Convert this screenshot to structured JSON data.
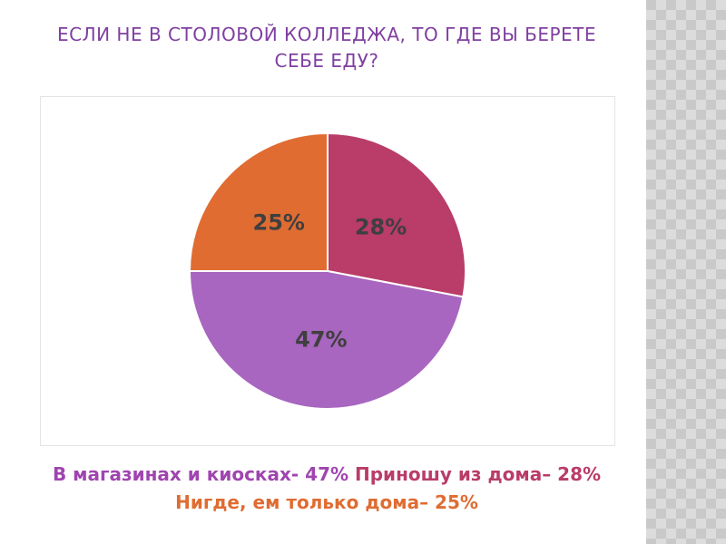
{
  "slide": {
    "title": "Если не в столовой колледжа, то где вы берете себе еду?"
  },
  "chart_data": {
    "type": "pie",
    "title": "",
    "slices": [
      {
        "category": "Приношу из дома",
        "value": 28,
        "label": "28%",
        "color": "#b93c69"
      },
      {
        "category": "В магазинах и киосках",
        "value": 47,
        "label": "47%",
        "color": "#a866c0"
      },
      {
        "category": "Нигде, ем только дома",
        "value": 25,
        "label": "25%",
        "color": "#e06c32"
      }
    ],
    "label_color": "#3f3f3f"
  },
  "caption": {
    "part1": "В магазинах и киосках- 47% ",
    "part1_color": "#a044b0",
    "part2": "Приношу из дома– 28% ",
    "part2_color": "#b93c69",
    "part3": "Нигде, ем только дома– 25%",
    "part3_color": "#e06c32"
  },
  "colors": {
    "title": "#7f3fa0",
    "panel": "#c9c9c9"
  }
}
